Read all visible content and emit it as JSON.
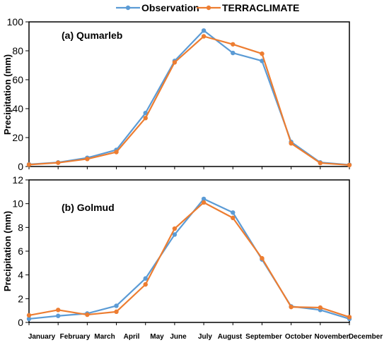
{
  "legend": {
    "position": "top-center",
    "entries": [
      {
        "label": "Observation",
        "color": "#5b9bd5"
      },
      {
        "label": "TERRACLIMATE",
        "color": "#ed7d31"
      }
    ]
  },
  "chart_data": [
    {
      "type": "line",
      "title": "(a) Qumarleb",
      "ylabel": "Precipitation (mm)",
      "xlabel": "",
      "ylim": [
        0,
        100
      ],
      "yticks": [
        0,
        20,
        40,
        60,
        80,
        100
      ],
      "grid": false,
      "categories": [
        "January",
        "February",
        "March",
        "April",
        "May",
        "June",
        "July",
        "August",
        "September",
        "October",
        "November",
        "December"
      ],
      "series": [
        {
          "name": "Observation",
          "color": "#5b9bd5",
          "values": [
            1.5,
            2.8,
            6.0,
            11.5,
            37.0,
            73.0,
            94.0,
            78.5,
            73.0,
            17.0,
            2.8,
            1.2
          ]
        },
        {
          "name": "TERRACLIMATE",
          "color": "#ed7d31",
          "values": [
            1.3,
            2.6,
            5.2,
            10.0,
            33.5,
            72.0,
            90.0,
            84.5,
            78.0,
            16.0,
            2.4,
            1.0
          ]
        }
      ]
    },
    {
      "type": "line",
      "title": "(b) Golmud",
      "ylabel": "Precipitation (mm)",
      "xlabel": "",
      "ylim": [
        0,
        12
      ],
      "yticks": [
        0,
        2,
        4,
        6,
        8,
        10,
        12
      ],
      "grid": false,
      "categories": [
        "January",
        "February",
        "March",
        "April",
        "May",
        "June",
        "July",
        "August",
        "September",
        "October",
        "November",
        "December"
      ],
      "series": [
        {
          "name": "Observation",
          "color": "#5b9bd5",
          "values": [
            0.3,
            0.55,
            0.75,
            1.4,
            3.7,
            7.4,
            10.4,
            9.25,
            5.3,
            1.35,
            1.05,
            0.3
          ]
        },
        {
          "name": "TERRACLIMATE",
          "color": "#ed7d31",
          "values": [
            0.6,
            1.05,
            0.65,
            0.9,
            3.2,
            7.9,
            10.1,
            8.8,
            5.4,
            1.3,
            1.25,
            0.45
          ]
        }
      ]
    }
  ]
}
